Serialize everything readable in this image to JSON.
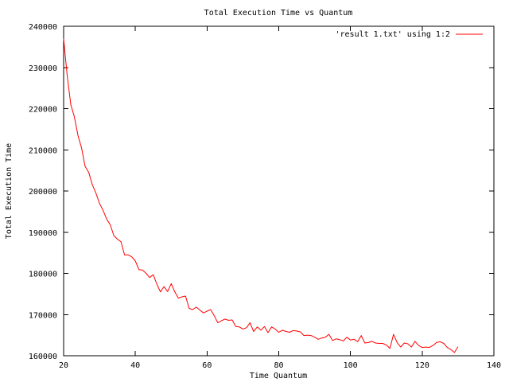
{
  "chart_data": {
    "type": "line",
    "title": "Total Execution Time vs Quantum",
    "xlabel": "Time Quantum",
    "ylabel": "Total Execution Time",
    "xlim": [
      20,
      140
    ],
    "ylim": [
      160000,
      240000
    ],
    "xticks": [
      20,
      40,
      60,
      80,
      100,
      120,
      140
    ],
    "yticks": [
      160000,
      170000,
      180000,
      190000,
      200000,
      210000,
      220000,
      230000,
      240000
    ],
    "xtick_labels": [
      "20",
      "40",
      "60",
      "80",
      "100",
      "120",
      "140"
    ],
    "ytick_labels": [
      "160000",
      "170000",
      "180000",
      "190000",
      "200000",
      "210000",
      "220000",
      "230000",
      "240000"
    ],
    "grid": false,
    "legend_position": "top-right",
    "series": [
      {
        "name": "'result 1.txt' using 1:2",
        "color": "#ff0000",
        "x": [
          20,
          21,
          22,
          23,
          24,
          25,
          26,
          27,
          28,
          29,
          30,
          31,
          32,
          33,
          34,
          35,
          36,
          37,
          38,
          39,
          40,
          41,
          42,
          43,
          44,
          45,
          46,
          47,
          48,
          49,
          50,
          51,
          52,
          53,
          54,
          55,
          56,
          57,
          58,
          59,
          60,
          61,
          62,
          63,
          64,
          65,
          66,
          67,
          68,
          69,
          70,
          71,
          72,
          73,
          74,
          75,
          76,
          77,
          78,
          79,
          80,
          81,
          82,
          83,
          84,
          85,
          86,
          87,
          88,
          89,
          90,
          91,
          92,
          93,
          94,
          95,
          96,
          97,
          98,
          99,
          100,
          101,
          102,
          103,
          104,
          105,
          106,
          107,
          108,
          109,
          110,
          111,
          112,
          113,
          114,
          115,
          116,
          117,
          118,
          119,
          120,
          121,
          122,
          123,
          124,
          125,
          126,
          127,
          128,
          129,
          130
        ],
        "y": [
          237000,
          228000,
          221000,
          218000,
          213500,
          210500,
          206000,
          204500,
          201500,
          199500,
          197000,
          195300,
          193200,
          191800,
          189200,
          188300,
          187700,
          184500,
          184500,
          184000,
          183000,
          180900,
          180800,
          180000,
          179000,
          179700,
          177400,
          175500,
          176800,
          175600,
          177500,
          175500,
          174000,
          174300,
          174500,
          171500,
          171200,
          171800,
          171100,
          170400,
          170800,
          171200,
          169700,
          168000,
          168500,
          168900,
          168600,
          168700,
          167100,
          167000,
          166500,
          166800,
          168000,
          165900,
          167000,
          166200,
          167100,
          165600,
          167000,
          166500,
          165700,
          166200,
          165900,
          165700,
          166100,
          166000,
          165800,
          164900,
          165000,
          164900,
          164500,
          164000,
          164300,
          164500,
          165200,
          163700,
          164100,
          163900,
          163600,
          164500,
          163800,
          164000,
          163400,
          164900,
          163100,
          163200,
          163500,
          163100,
          163000,
          163000,
          162600,
          161800,
          165200,
          163200,
          162100,
          163100,
          162900,
          162100,
          163500,
          162500,
          162000,
          162100,
          162000,
          162500,
          163200,
          163400,
          163000,
          162000,
          161500,
          160800,
          162200
        ]
      }
    ]
  }
}
